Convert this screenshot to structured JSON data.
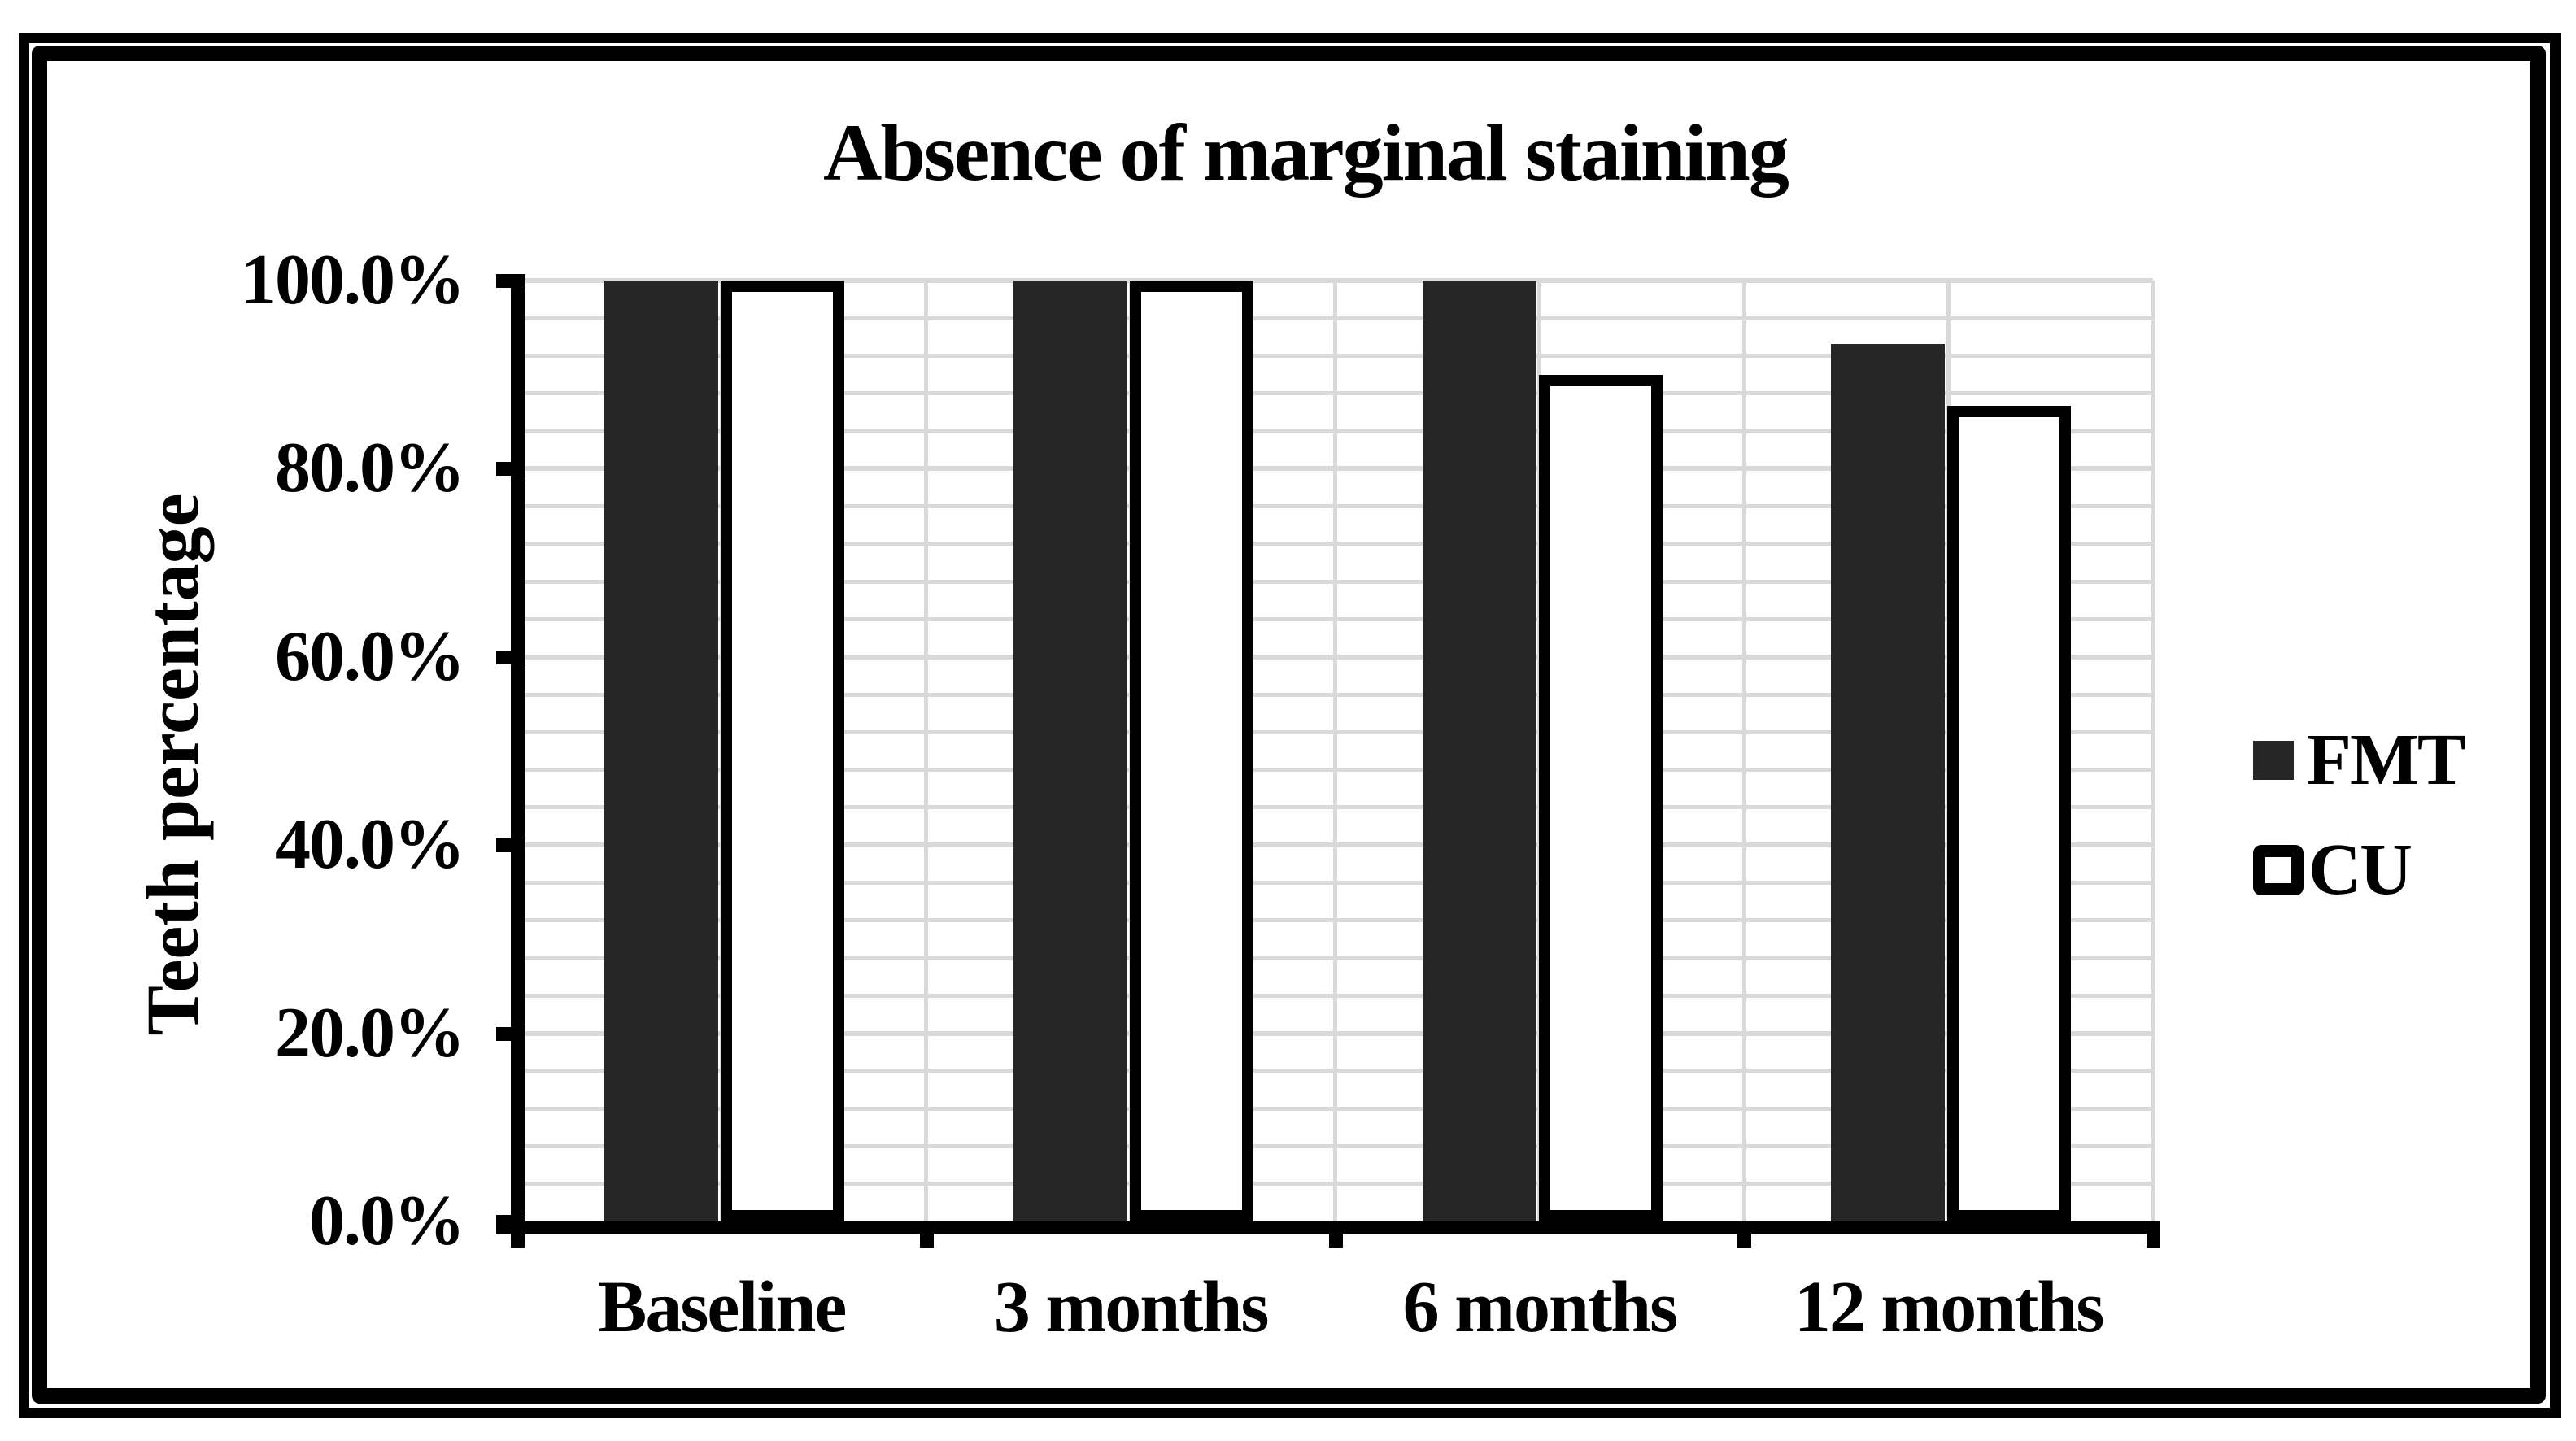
{
  "chart_data": {
    "type": "bar",
    "title": "Absence of marginal staining",
    "ylabel": "Teeth percentage",
    "xlabel": "",
    "categories": [
      "Baseline",
      "3 months",
      "6 months",
      "12 months"
    ],
    "series": [
      {
        "name": "FMT",
        "values": [
          100,
          100,
          100,
          93.3
        ],
        "fill": "#262626",
        "outline": "none"
      },
      {
        "name": "CU",
        "values": [
          100,
          100,
          90,
          86.7
        ],
        "fill": "#ffffff",
        "outline": "#000000"
      }
    ],
    "y_ticks": [
      "100.0%",
      "80.0%",
      "60.0%",
      "40.0%",
      "20.0%",
      "0.0%"
    ],
    "ylim": [
      0,
      100
    ],
    "major_unit_pct": 20,
    "minor_unit_pct": 4,
    "grid": "horizontal major+minor, vertical at half-category steps",
    "legend_position": "right",
    "colors": {
      "gridline": "#d9d9d9",
      "axis": "#000000",
      "text": "#000000",
      "background": "#ffffff"
    }
  }
}
